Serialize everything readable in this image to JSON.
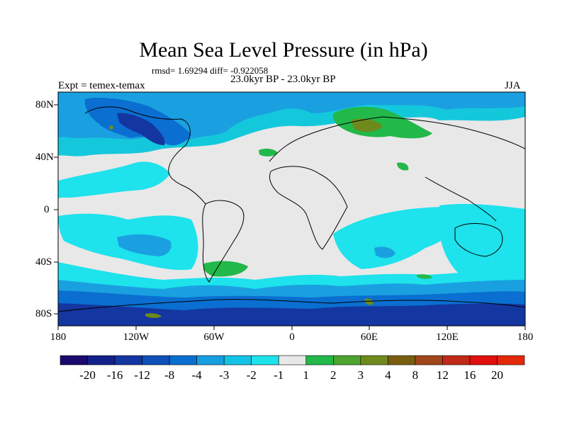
{
  "title": "Mean Sea Level Pressure (in hPa)",
  "stats": "rmsd= 1.69294 diff= -0.922058",
  "time_range": "23.0kyr BP - 23.0kyr BP",
  "experiment": "Expt = temex-temax",
  "season": "JJA",
  "lat_labels": [
    "80N",
    "40N",
    "0",
    "40S",
    "80S"
  ],
  "lon_labels": [
    "180",
    "120W",
    "60W",
    "0",
    "60E",
    "120E",
    "180"
  ],
  "colorbar": {
    "labels": [
      "-20",
      "-16",
      "-12",
      "-8",
      "-4",
      "-3",
      "-2",
      "-1",
      "1",
      "2",
      "3",
      "4",
      "8",
      "12",
      "16",
      "20"
    ],
    "colors": [
      "#1a0a6e",
      "#12208a",
      "#1436a0",
      "#0e4fb8",
      "#0a6fd0",
      "#159fe0",
      "#12c3e6",
      "#1ee2ec",
      "#e8e8e8",
      "#22b84a",
      "#4ea42e",
      "#6f8a1c",
      "#7a5e10",
      "#a0461a",
      "#c02a16",
      "#e0100e",
      "#e4280a"
    ]
  },
  "map_colors": {
    "neutral": "#e8e8e8",
    "light_blue": "#14c8dc",
    "cyan": "#1ee2ec",
    "medium_blue": "#1aa0e0",
    "blue": "#0a6fd0",
    "dark_blue": "#1436a0",
    "green": "#22b84a",
    "olive": "#6f8a1c",
    "coast": "#000000"
  }
}
